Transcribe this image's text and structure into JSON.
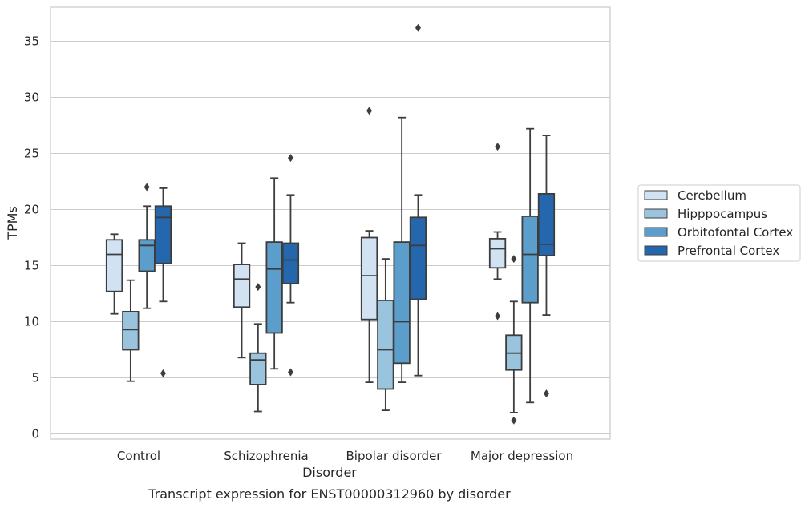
{
  "caption": "Transcript expression for ENST00000312960 by disorder",
  "chart_data": {
    "type": "boxplot",
    "xlabel": "Disorder",
    "ylabel": "TPMs",
    "ylim": [
      -0.5,
      38
    ],
    "yticks": [
      0,
      5,
      10,
      15,
      20,
      25,
      30,
      35
    ],
    "grid": "horizontal",
    "legend_position": "right-outside",
    "categories": [
      "Control",
      "Schizophrenia",
      "Bipolar disorder",
      "Major depression"
    ],
    "series": [
      {
        "name": "Cerebellum",
        "color": "#d1e2f2",
        "boxes": [
          {
            "whisker_low": 10.7,
            "q1": 12.7,
            "median": 16.0,
            "q3": 17.3,
            "whisker_high": 17.8,
            "outliers": []
          },
          {
            "whisker_low": 6.8,
            "q1": 11.3,
            "median": 13.8,
            "q3": 15.1,
            "whisker_high": 17.0,
            "outliers": []
          },
          {
            "whisker_low": 4.6,
            "q1": 10.2,
            "median": 14.1,
            "q3": 17.5,
            "whisker_high": 18.1,
            "outliers": [
              28.8
            ]
          },
          {
            "whisker_low": 13.8,
            "q1": 14.8,
            "median": 16.5,
            "q3": 17.4,
            "whisker_high": 18.0,
            "outliers": [
              25.6,
              10.5
            ]
          }
        ]
      },
      {
        "name": "Hipppocampus",
        "color": "#9ac4de",
        "boxes": [
          {
            "whisker_low": 4.7,
            "q1": 7.5,
            "median": 9.3,
            "q3": 10.9,
            "whisker_high": 13.7,
            "outliers": []
          },
          {
            "whisker_low": 2.0,
            "q1": 4.4,
            "median": 6.6,
            "q3": 7.2,
            "whisker_high": 9.8,
            "outliers": [
              13.1
            ]
          },
          {
            "whisker_low": 2.1,
            "q1": 4.0,
            "median": 7.5,
            "q3": 11.9,
            "whisker_high": 15.6,
            "outliers": []
          },
          {
            "whisker_low": 1.9,
            "q1": 5.7,
            "median": 7.2,
            "q3": 8.8,
            "whisker_high": 11.8,
            "outliers": [
              1.2,
              15.6
            ]
          }
        ]
      },
      {
        "name": "Orbitofontal Cortex",
        "color": "#5b9dcb",
        "boxes": [
          {
            "whisker_low": 11.2,
            "q1": 14.5,
            "median": 16.8,
            "q3": 17.3,
            "whisker_high": 20.3,
            "outliers": [
              22.0
            ]
          },
          {
            "whisker_low": 5.8,
            "q1": 9.0,
            "median": 14.7,
            "q3": 17.1,
            "whisker_high": 22.8,
            "outliers": []
          },
          {
            "whisker_low": 4.6,
            "q1": 6.3,
            "median": 10.0,
            "q3": 17.1,
            "whisker_high": 28.2,
            "outliers": []
          },
          {
            "whisker_low": 2.8,
            "q1": 11.7,
            "median": 16.0,
            "q3": 19.4,
            "whisker_high": 27.2,
            "outliers": []
          }
        ]
      },
      {
        "name": "Prefrontal Cortex",
        "color": "#2567ad",
        "boxes": [
          {
            "whisker_low": 11.8,
            "q1": 15.2,
            "median": 19.3,
            "q3": 20.3,
            "whisker_high": 21.9,
            "outliers": [
              5.4
            ]
          },
          {
            "whisker_low": 11.7,
            "q1": 13.4,
            "median": 15.5,
            "q3": 17.0,
            "whisker_high": 21.3,
            "outliers": [
              24.6,
              5.5
            ]
          },
          {
            "whisker_low": 5.2,
            "q1": 12.0,
            "median": 16.8,
            "q3": 19.3,
            "whisker_high": 21.3,
            "outliers": [
              36.2
            ]
          },
          {
            "whisker_low": 10.6,
            "q1": 15.9,
            "median": 16.9,
            "q3": 21.4,
            "whisker_high": 26.6,
            "outliers": [
              3.6
            ]
          }
        ]
      }
    ]
  }
}
